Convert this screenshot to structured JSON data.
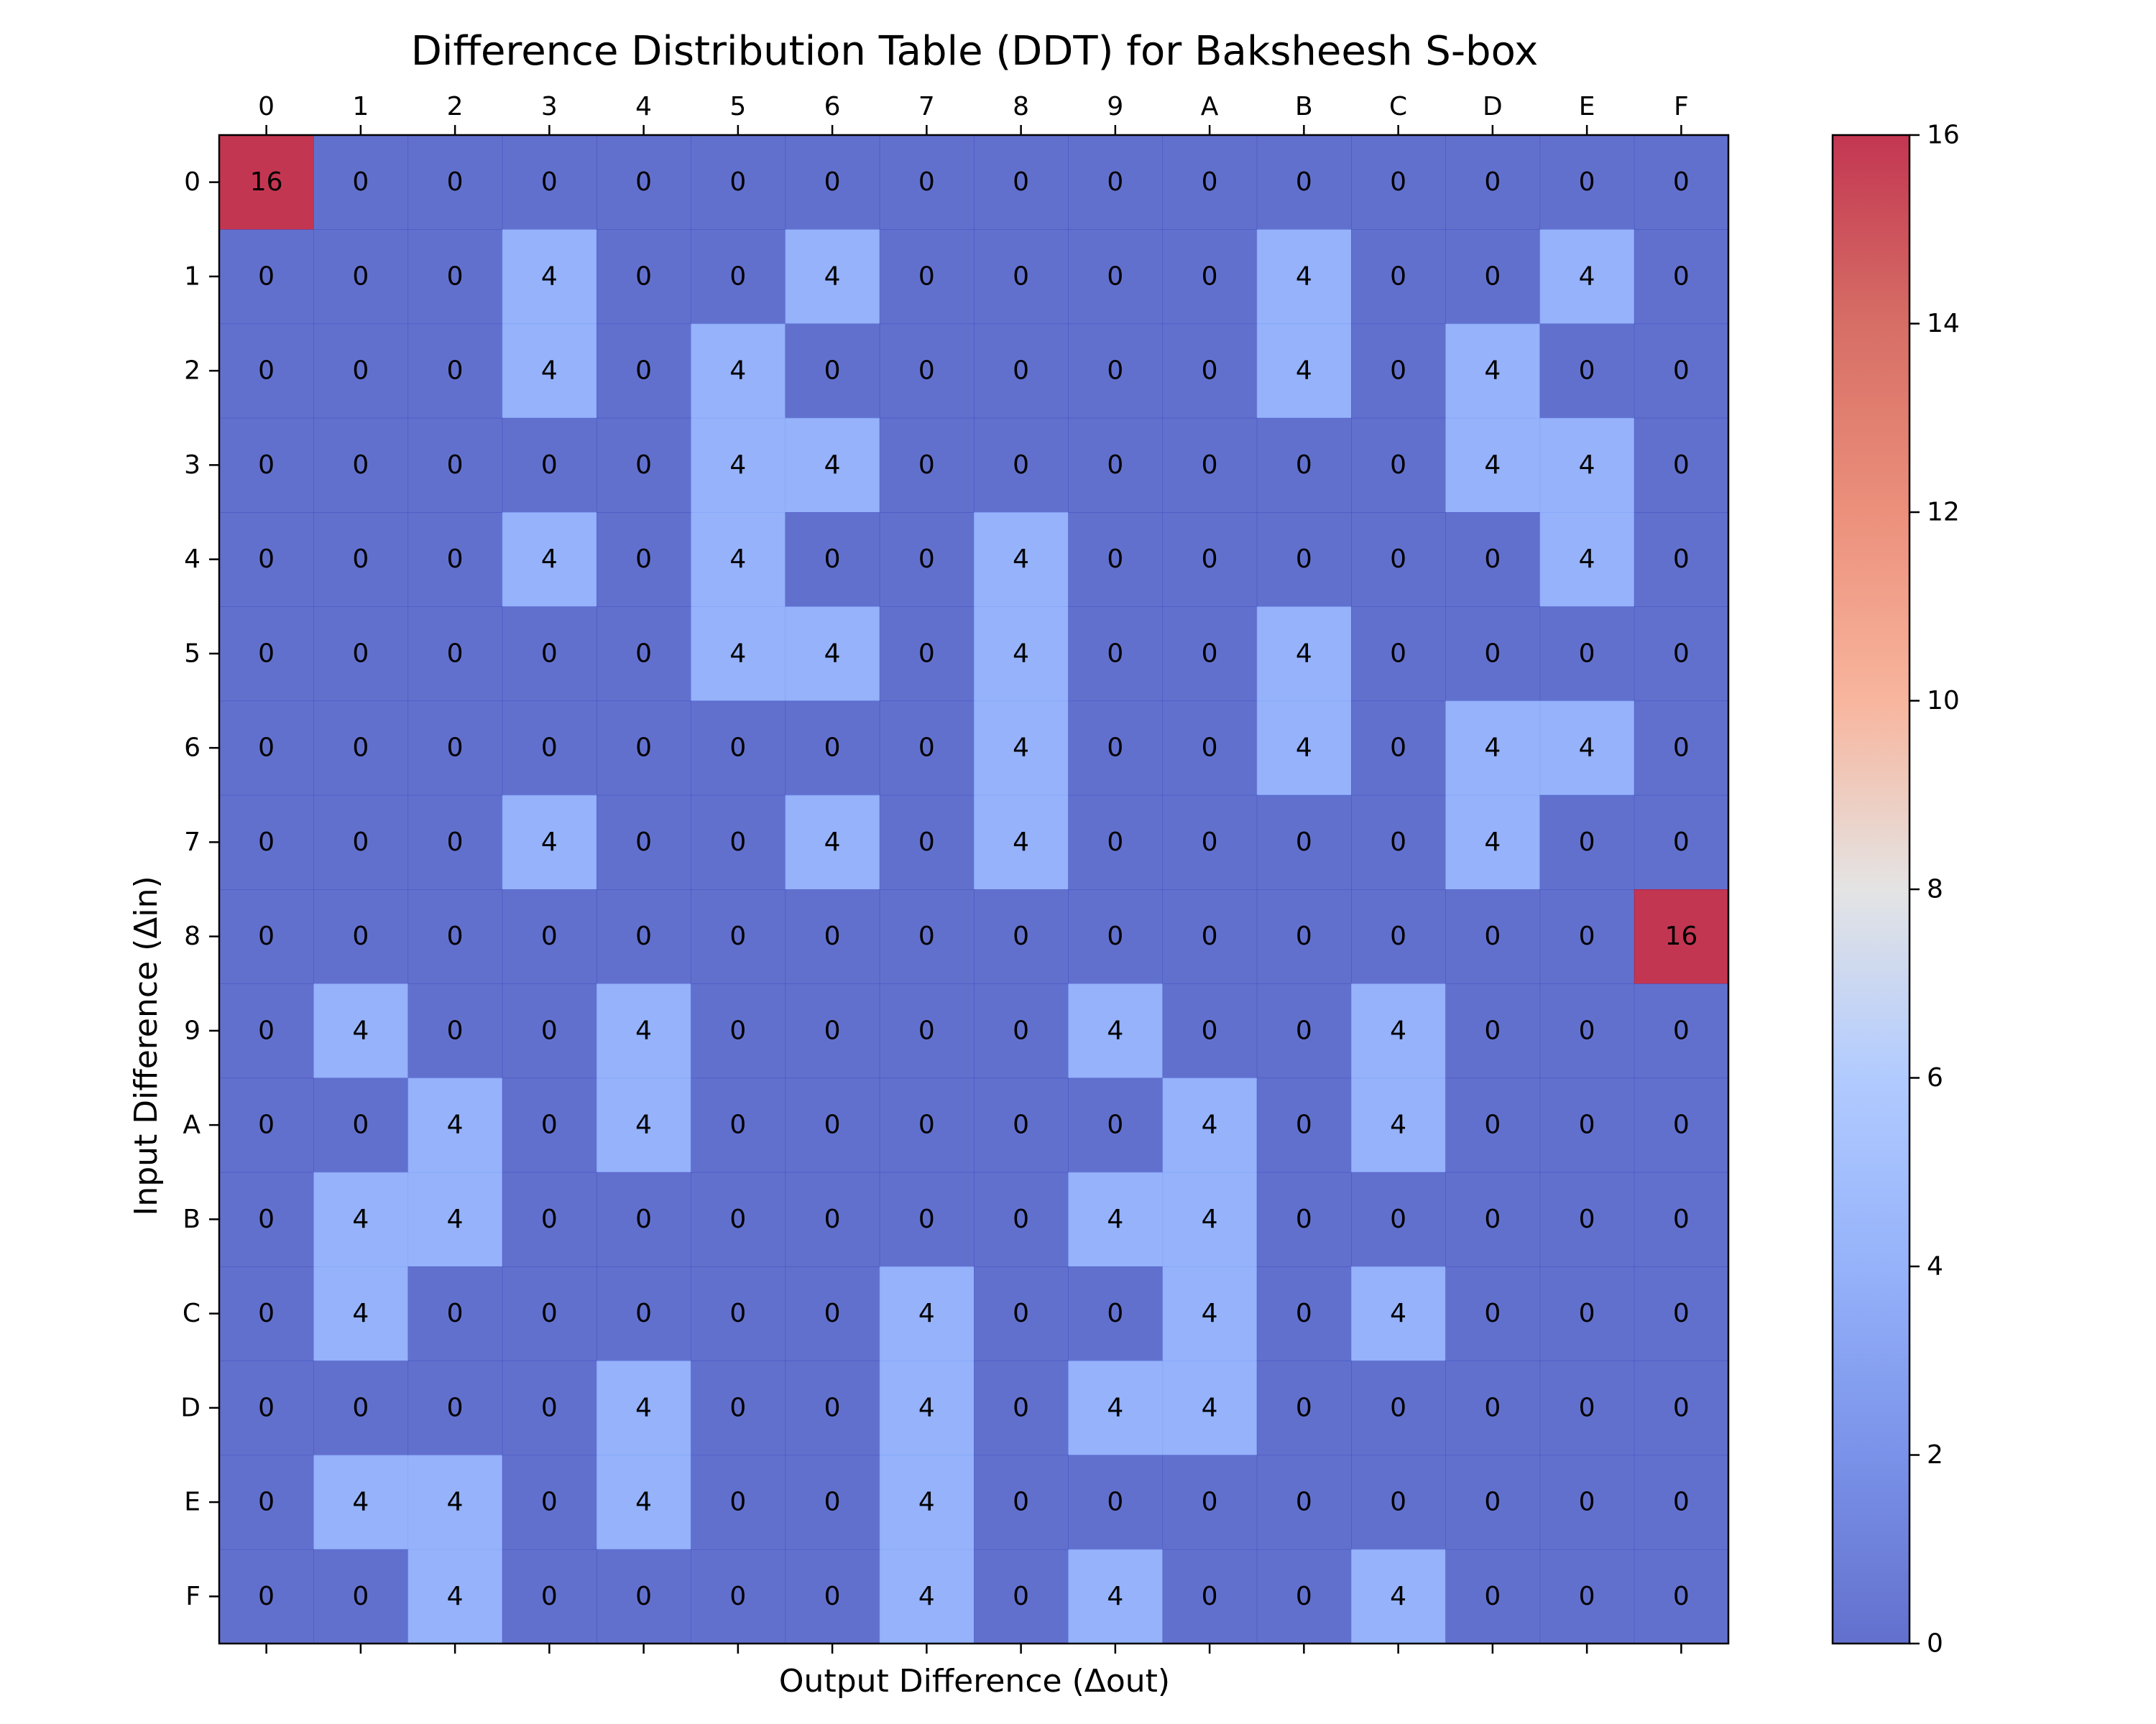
{
  "chart_data": {
    "type": "heatmap",
    "title": "Difference Distribution Table (DDT) for Baksheesh S-box",
    "xlabel": "Output Difference (Δout)",
    "ylabel": "Input Difference (Δin)",
    "x_ticks": [
      "0",
      "1",
      "2",
      "3",
      "4",
      "5",
      "6",
      "7",
      "8",
      "9",
      "A",
      "B",
      "C",
      "D",
      "E",
      "F"
    ],
    "y_ticks": [
      "0",
      "1",
      "2",
      "3",
      "4",
      "5",
      "6",
      "7",
      "8",
      "9",
      "A",
      "B",
      "C",
      "D",
      "E",
      "F"
    ],
    "values": [
      [
        16,
        0,
        0,
        0,
        0,
        0,
        0,
        0,
        0,
        0,
        0,
        0,
        0,
        0,
        0,
        0
      ],
      [
        0,
        0,
        0,
        4,
        0,
        0,
        4,
        0,
        0,
        0,
        0,
        4,
        0,
        0,
        4,
        0
      ],
      [
        0,
        0,
        0,
        4,
        0,
        4,
        0,
        0,
        0,
        0,
        0,
        4,
        0,
        4,
        0,
        0
      ],
      [
        0,
        0,
        0,
        0,
        0,
        4,
        4,
        0,
        0,
        0,
        0,
        0,
        0,
        4,
        4,
        0
      ],
      [
        0,
        0,
        0,
        4,
        0,
        4,
        0,
        0,
        4,
        0,
        0,
        0,
        0,
        0,
        4,
        0
      ],
      [
        0,
        0,
        0,
        0,
        0,
        4,
        4,
        0,
        4,
        0,
        0,
        4,
        0,
        0,
        0,
        0
      ],
      [
        0,
        0,
        0,
        0,
        0,
        0,
        0,
        0,
        4,
        0,
        0,
        4,
        0,
        4,
        4,
        0
      ],
      [
        0,
        0,
        0,
        4,
        0,
        0,
        4,
        0,
        4,
        0,
        0,
        0,
        0,
        4,
        0,
        0
      ],
      [
        0,
        0,
        0,
        0,
        0,
        0,
        0,
        0,
        0,
        0,
        0,
        0,
        0,
        0,
        0,
        16
      ],
      [
        0,
        4,
        0,
        0,
        4,
        0,
        0,
        0,
        0,
        4,
        0,
        0,
        4,
        0,
        0,
        0
      ],
      [
        0,
        0,
        4,
        0,
        4,
        0,
        0,
        0,
        0,
        0,
        4,
        0,
        4,
        0,
        0,
        0
      ],
      [
        0,
        4,
        4,
        0,
        0,
        0,
        0,
        0,
        0,
        4,
        4,
        0,
        0,
        0,
        0,
        0
      ],
      [
        0,
        4,
        0,
        0,
        0,
        0,
        0,
        4,
        0,
        0,
        4,
        0,
        4,
        0,
        0,
        0
      ],
      [
        0,
        0,
        0,
        0,
        4,
        0,
        0,
        4,
        0,
        4,
        4,
        0,
        0,
        0,
        0,
        0
      ],
      [
        0,
        4,
        4,
        0,
        4,
        0,
        0,
        4,
        0,
        0,
        0,
        0,
        0,
        0,
        0,
        0
      ],
      [
        0,
        0,
        4,
        0,
        0,
        0,
        0,
        4,
        0,
        4,
        0,
        0,
        4,
        0,
        0,
        0
      ]
    ],
    "colormap": "coolwarm",
    "cell_alpha": 0.8,
    "color_scale": [
      [
        0,
        "#3b4cc0"
      ],
      [
        0.125,
        "#5977e3"
      ],
      [
        0.25,
        "#7b9ff9"
      ],
      [
        0.375,
        "#9ebeff"
      ],
      [
        0.5,
        "#dddddd"
      ],
      [
        0.625,
        "#f6a385"
      ],
      [
        0.75,
        "#e7745b"
      ],
      [
        0.875,
        "#cc4a3f"
      ],
      [
        1,
        "#b40426"
      ]
    ],
    "vmin": 0,
    "vmax": 16,
    "colorbar": {
      "ticks": [
        0,
        2,
        4,
        6,
        8,
        10,
        12,
        14,
        16
      ],
      "position": "right"
    },
    "grid": false,
    "x_axis_position": "top-and-bottom-ticks, labels on top"
  }
}
